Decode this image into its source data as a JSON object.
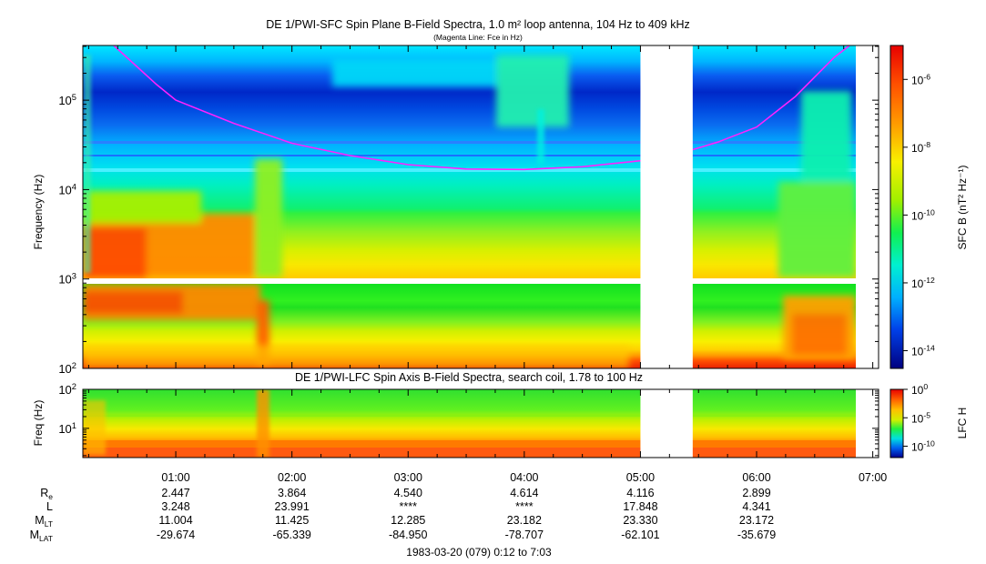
{
  "title": "DE 1/PWI-SFC  Spin Plane B-Field Spectra, 1.0 m² loop antenna, 104 Hz to 409 kHz",
  "subtitle": "(Magenta Line: Fce in Hz)",
  "footer": "1983-03-20 (079) 0:12 to 7:03",
  "chart_data": [
    {
      "type": "heatmap",
      "title": "DE 1/PWI-SFC  Spin Plane B-Field Spectra, 1.0 m² loop antenna, 104 Hz to 409 kHz",
      "subtitle": "(Magenta Line: Fce in Hz)",
      "ylabel": "Frequency (Hz)",
      "yscale": "log",
      "ylim": [
        100,
        409000
      ],
      "yticks": [
        {
          "v": 100,
          "b": "10",
          "e": "2"
        },
        {
          "v": 1000,
          "b": "10",
          "e": "3"
        },
        {
          "v": 10000,
          "b": "10",
          "e": "4"
        },
        {
          "v": 100000,
          "b": "10",
          "e": "5"
        }
      ],
      "xlim": [
        "00:12",
        "07:03"
      ],
      "data_gap": [
        "05:00",
        "05:27"
      ],
      "colorbar": {
        "label": "SFC B (nT² Hz⁻¹)",
        "scale": "log",
        "range": [
          3e-15,
          1e-05
        ],
        "ticks": [
          {
            "v": 1e-06,
            "b": "10",
            "e": "-6"
          },
          {
            "v": 1e-08,
            "b": "10",
            "e": "-8"
          },
          {
            "v": 1e-10,
            "b": "10",
            "e": "-10"
          },
          {
            "v": 1e-12,
            "b": "10",
            "e": "-12"
          },
          {
            "v": 1e-14,
            "b": "10",
            "e": "-14"
          }
        ]
      },
      "fce_line": {
        "name": "Fce in Hz",
        "color": "#ff22ff",
        "t": [
          "00:28",
          "00:50",
          "01:00",
          "01:30",
          "02:00",
          "02:30",
          "03:00",
          "03:30",
          "04:00",
          "04:30",
          "05:00",
          "05:27",
          "05:40",
          "06:00",
          "06:20",
          "06:40",
          "06:48"
        ],
        "f": [
          409000,
          150000,
          100000,
          55000,
          33000,
          24000,
          19000,
          17000,
          16800,
          18000,
          21000,
          28000,
          34000,
          50000,
          110000,
          300000,
          409000
        ]
      }
    },
    {
      "type": "heatmap",
      "title": "DE 1/PWI-LFC  Spin Axis B-Field Spectra, search coil, 1.78 to 100 Hz",
      "ylabel": "Freq (Hz)",
      "yscale": "log",
      "ylim": [
        1.78,
        100
      ],
      "yticks": [
        {
          "v": 10,
          "b": "10",
          "e": "1"
        },
        {
          "v": 100,
          "b": "10",
          "e": "2"
        }
      ],
      "xlim": [
        "00:12",
        "07:03"
      ],
      "data_gap": [
        "05:00",
        "05:27"
      ],
      "colorbar": {
        "label": "LFC H",
        "scale": "log",
        "range": [
          1e-12,
          1
        ],
        "ticks": [
          {
            "v": 1,
            "b": "10",
            "e": "0"
          },
          {
            "v": 1e-05,
            "b": "10",
            "e": "-5"
          },
          {
            "v": 1e-10,
            "b": "10",
            "e": "-10"
          }
        ]
      }
    }
  ],
  "xaxis": {
    "ticks": [
      "01:00",
      "02:00",
      "03:00",
      "04:00",
      "05:00",
      "06:00",
      "07:00"
    ]
  },
  "ephemeris": {
    "rows": [
      {
        "label": "R",
        "sub": "e",
        "values": [
          "2.447",
          "3.864",
          "4.540",
          "4.614",
          "4.116",
          "2.899"
        ]
      },
      {
        "label": "L",
        "sub": "",
        "values": [
          "3.248",
          "23.991",
          "****",
          "****",
          "17.848",
          "4.341"
        ]
      },
      {
        "label": "M",
        "sub": "LT",
        "values": [
          "11.004",
          "11.425",
          "12.285",
          "23.182",
          "23.330",
          "23.172"
        ]
      },
      {
        "label": "M",
        "sub": "LAT",
        "values": [
          "-29.674",
          "-65.339",
          "-84.950",
          "-78.707",
          "-62.101",
          "-35.679"
        ]
      }
    ]
  }
}
